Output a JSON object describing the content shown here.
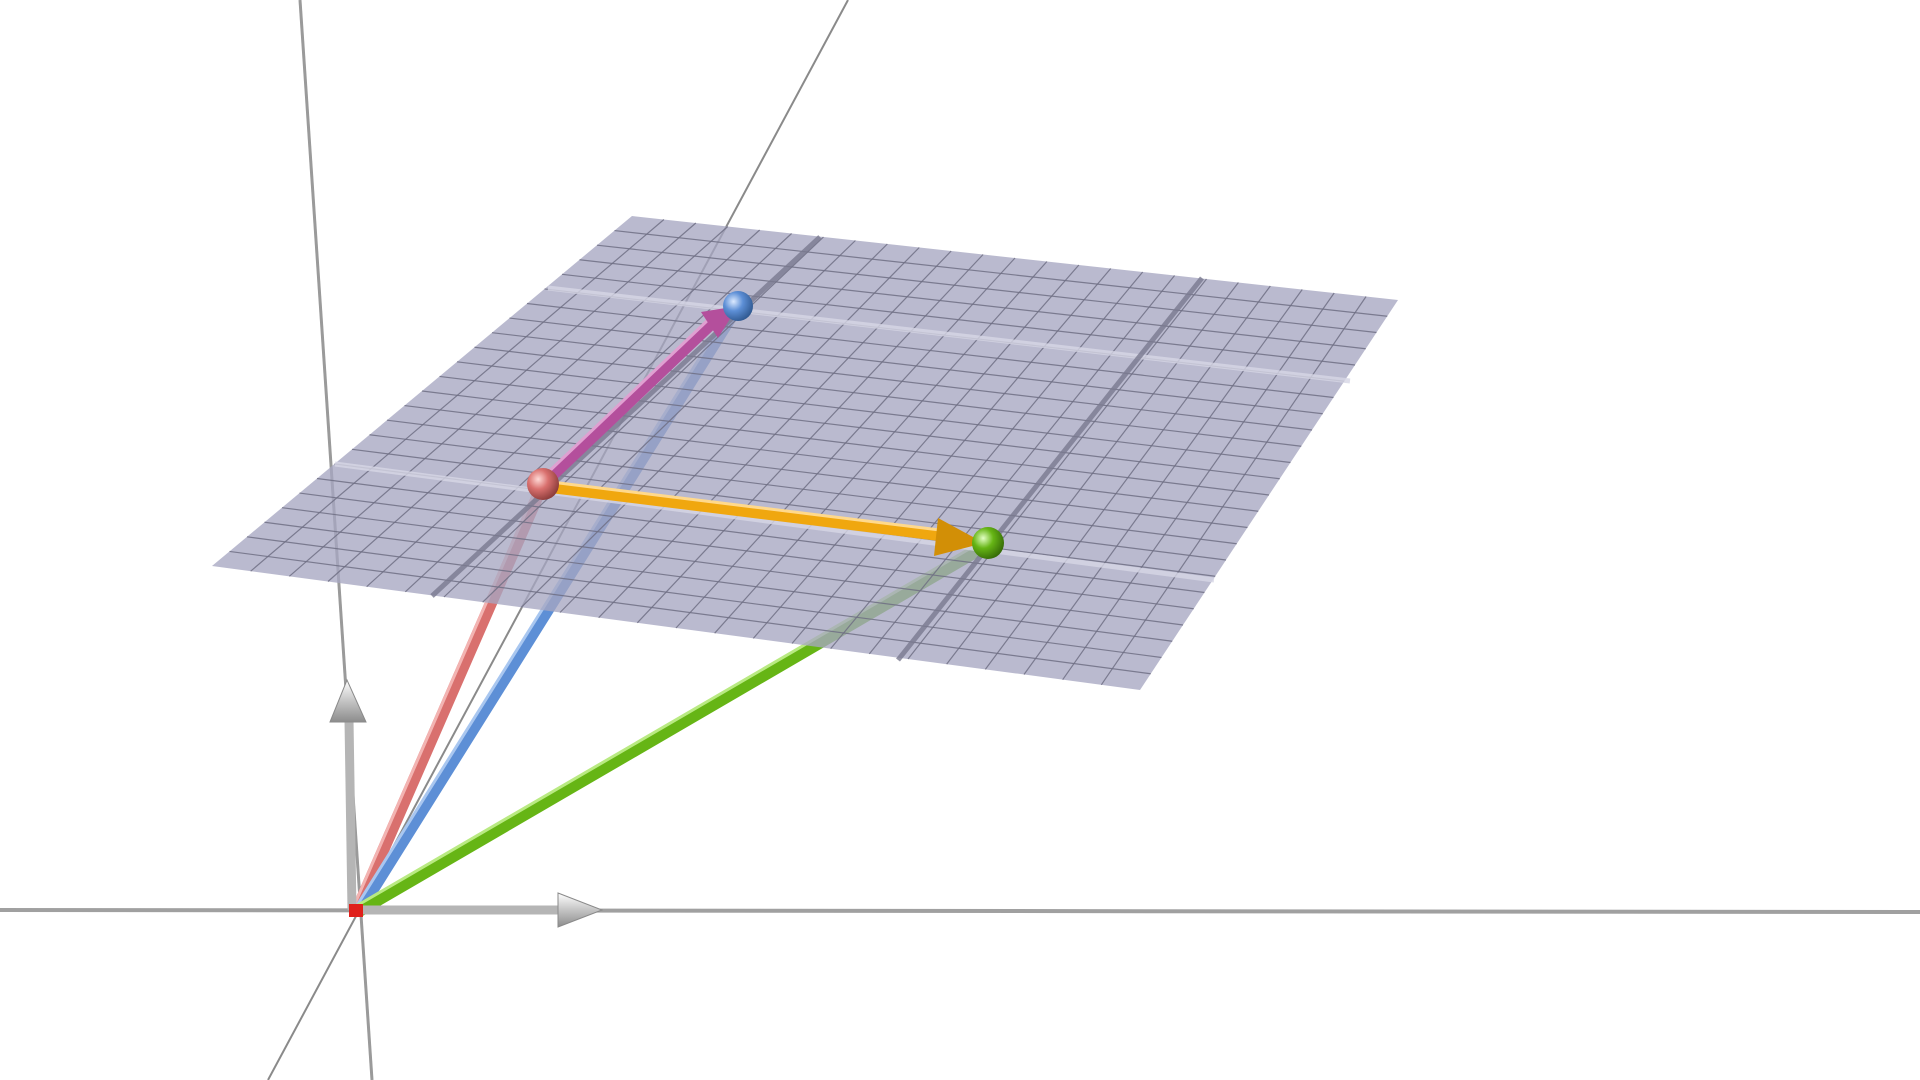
{
  "scene": {
    "type": "3d-vector-diagram",
    "background": "#ffffff",
    "plane_color": "#a7a7c2",
    "grid_line_color": "#6f6f84",
    "colors": {
      "red": "#d9706e",
      "blue": "#5d8fd6",
      "green": "#66b515",
      "orange": "#f0a70f",
      "magenta": "#b44f9c",
      "axis_gray": "#bfbfbf"
    },
    "points": [
      {
        "name": "point-red",
        "color": "#d9706e"
      },
      {
        "name": "point-blue",
        "color": "#5d8fd6"
      },
      {
        "name": "point-green",
        "color": "#66b515"
      },
      {
        "name": "origin-point",
        "color": "#e0201b"
      }
    ],
    "vectors": [
      {
        "name": "vector-origin-to-red",
        "color": "#d9706e"
      },
      {
        "name": "vector-origin-to-blue",
        "color": "#5d8fd6"
      },
      {
        "name": "vector-origin-to-green",
        "color": "#66b515"
      },
      {
        "name": "vector-red-to-green",
        "color": "#f0a70f"
      },
      {
        "name": "vector-red-to-blue",
        "color": "#b44f9c"
      }
    ]
  }
}
